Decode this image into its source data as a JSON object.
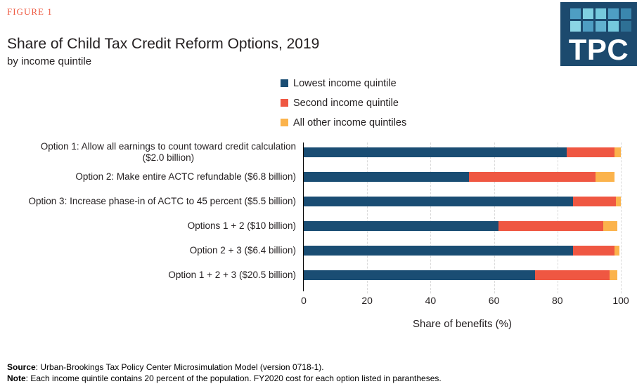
{
  "figure_label": "FIGURE 1",
  "title": "Share of Child Tax Credit Reform Options, 2019",
  "subtitle": "by income quintile",
  "logo": {
    "text": "TPC",
    "bg_color": "#1c4a6e",
    "squares": [
      "#4e9ec3",
      "#7fd0e2",
      "#75c9dd",
      "#4e9ec3",
      "#3a87ae",
      "#8bd5e5",
      "#4e9ec3",
      "#61b1cf",
      "#75c9dd",
      "#2e7095"
    ]
  },
  "legend": [
    {
      "label": "Lowest income quintile",
      "color": "#1a4d73"
    },
    {
      "label": "Second income quintile",
      "color": "#ef5742"
    },
    {
      "label": "All other income quintiles",
      "color": "#fbb34c"
    }
  ],
  "chart_data": {
    "type": "bar",
    "orientation": "horizontal",
    "stacked": true,
    "title": "Share of Child Tax Credit Reform Options, 2019",
    "subtitle": "by income quintile",
    "xlabel": "Share of benefits (%)",
    "xlim": [
      0,
      100
    ],
    "xticks": [
      0,
      20,
      40,
      60,
      80,
      100
    ],
    "grid": "vertical-dashed",
    "legend_position": "top",
    "categories": [
      {
        "lines": [
          "Option 1: Allow all earnings to count toward credit calculation",
          "($2.0 billion)"
        ]
      },
      {
        "lines": [
          "Option 2: Make entire ACTC refundable ($6.8 billion)"
        ]
      },
      {
        "lines": [
          "Option 3: Increase phase-in of ACTC to 45 percent ($5.5 billion)"
        ]
      },
      {
        "lines": [
          "Options 1 + 2 ($10 billion)"
        ]
      },
      {
        "lines": [
          "Option 2 + 3 ($6.4 billion)"
        ]
      },
      {
        "lines": [
          "Option 1 + 2 + 3 ($20.5 billion)"
        ]
      }
    ],
    "series": [
      {
        "name": "Lowest income quintile",
        "color": "#1a4d73",
        "values": [
          83,
          52,
          85,
          61.5,
          85,
          73
        ]
      },
      {
        "name": "Second income quintile",
        "color": "#ef5742",
        "values": [
          15,
          40,
          13.5,
          33,
          13,
          23.5
        ]
      },
      {
        "name": "All other income quintiles",
        "color": "#fbb34c",
        "values": [
          2,
          6,
          1.5,
          4.5,
          1.5,
          2.5
        ]
      }
    ]
  },
  "footer": {
    "source_label": "Source",
    "source_text": ": Urban-Brookings Tax Policy Center Microsimulation Model (version 0718-1).",
    "note_label": "Note",
    "note_text": ": Each income quintile contains 20 percent of the population. FY2020 cost for each option listed in parantheses."
  }
}
